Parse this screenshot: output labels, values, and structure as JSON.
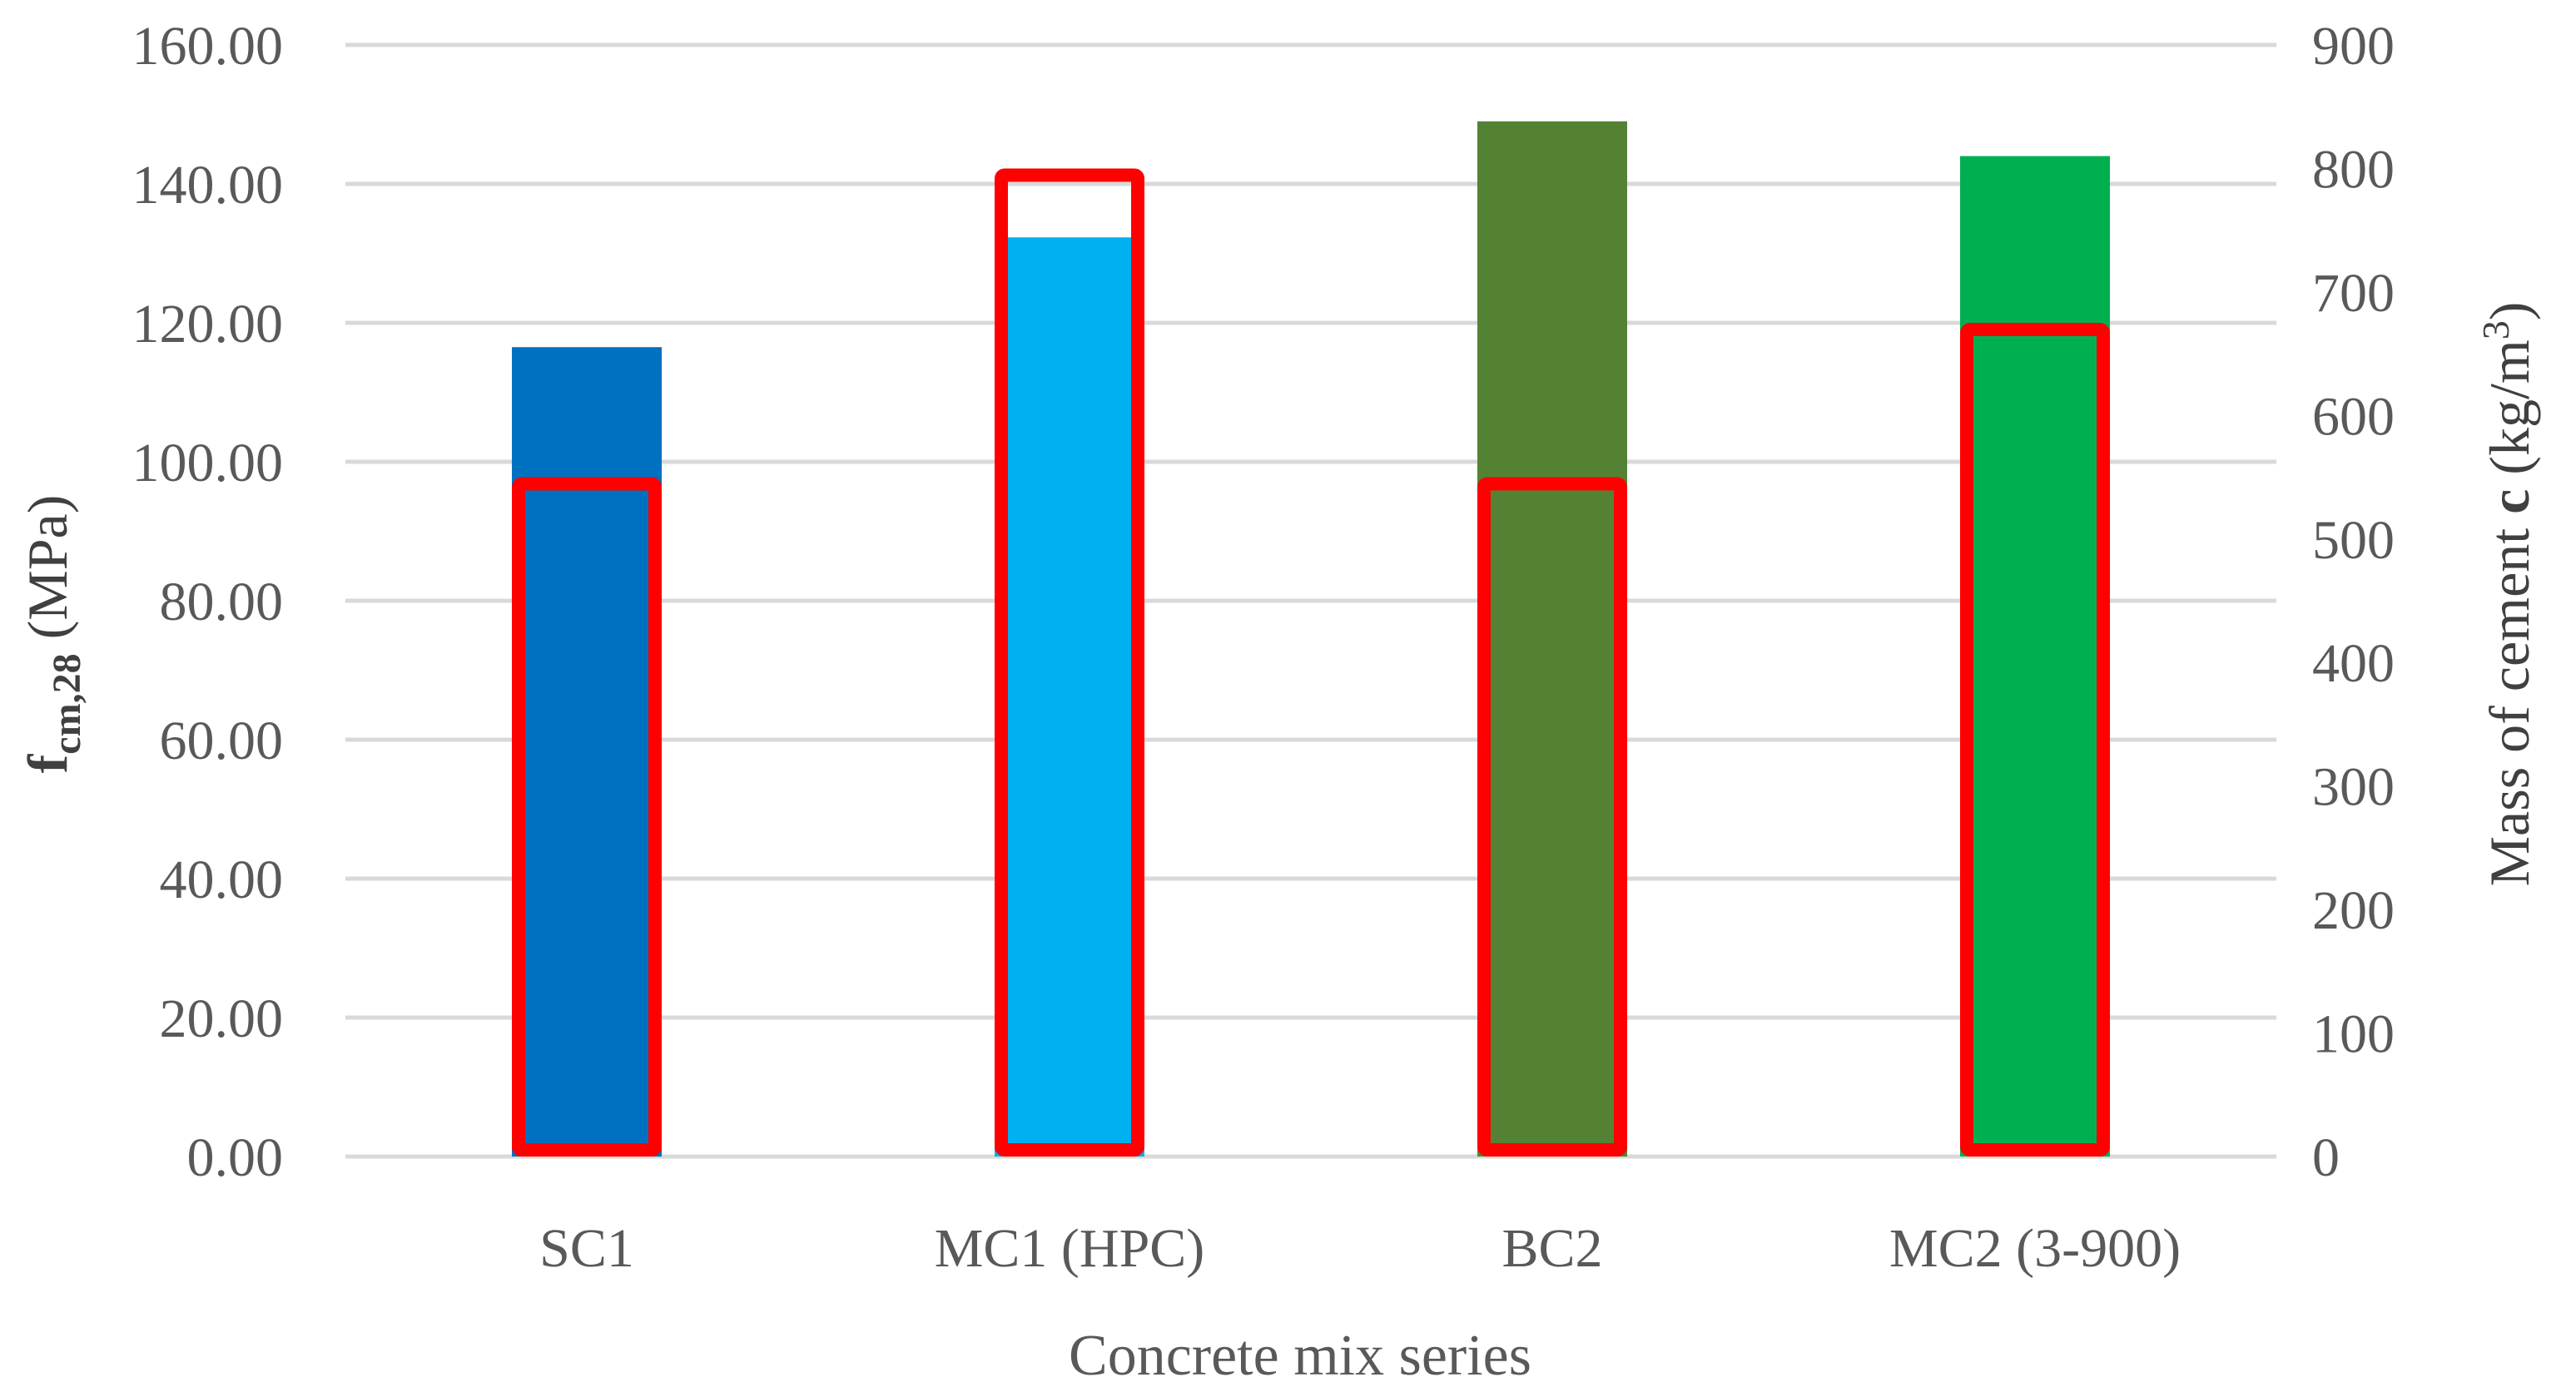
{
  "chart_data": {
    "type": "bar",
    "categories": [
      "SC1",
      "MC1 (HPC)",
      "BC2",
      "MC2 (3-900)"
    ],
    "series": [
      {
        "axis": "left",
        "style": "filled",
        "values": [
          116.5,
          132.3,
          149.0,
          144.0
        ],
        "colors": [
          "#0070c0",
          "#00b0f0",
          "#548235",
          "#00b050"
        ]
      },
      {
        "axis": "right",
        "style": "outline",
        "values": [
          550,
          800,
          550,
          675
        ],
        "color": "#ff0000"
      }
    ],
    "xlabel": "Concrete mix series",
    "ylabel": {
      "main": "f",
      "subscript": "cm,28",
      "unit": " (MPa)"
    },
    "y2label": {
      "prefix": "Mass of cement ",
      "bold": "c",
      "unit": " (kg/m",
      "superscript": "3",
      "close": ")"
    },
    "ylim": [
      0,
      160
    ],
    "y2lim": [
      0,
      900
    ],
    "yticks": [
      "0.00",
      "20.00",
      "40.00",
      "60.00",
      "80.00",
      "100.00",
      "120.00",
      "140.00",
      "160.00"
    ],
    "y2ticks": [
      "0",
      "100",
      "200",
      "300",
      "400",
      "500",
      "600",
      "700",
      "800",
      "900"
    ],
    "grid": true,
    "gridColor": "#d9d9d9",
    "legend": "none"
  }
}
